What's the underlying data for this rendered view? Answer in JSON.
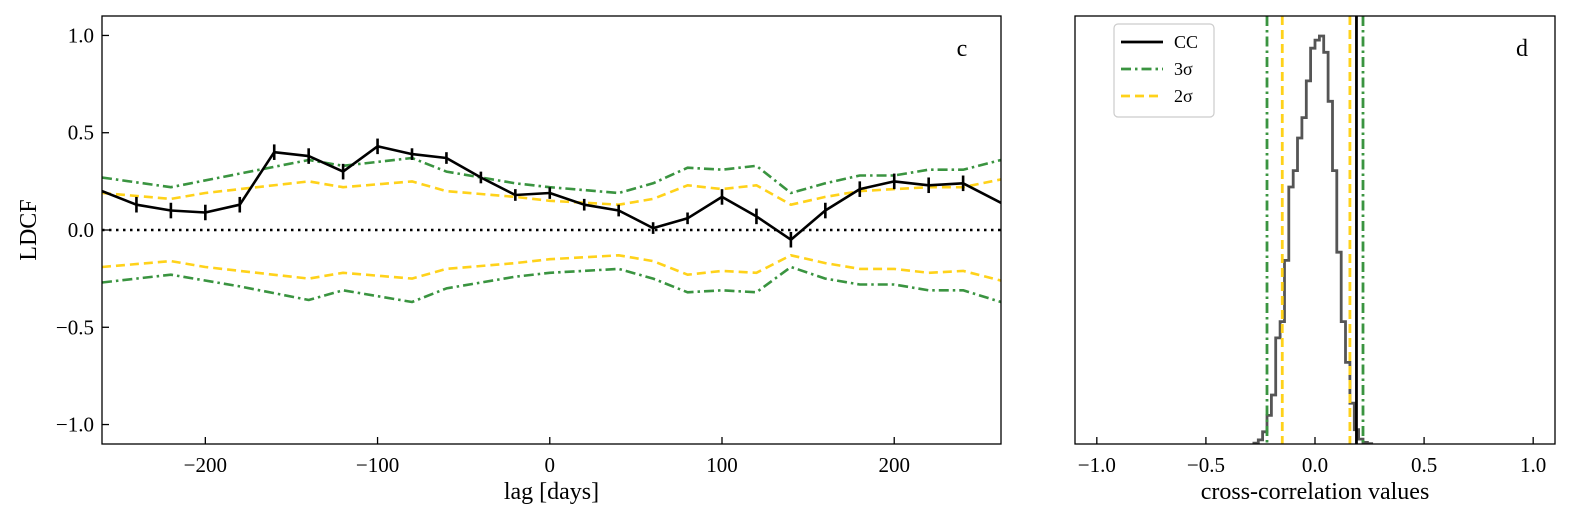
{
  "colors": {
    "cc": "#000000",
    "sigma3": "#3a9440",
    "sigma2": "#ffd21a",
    "zero_line": "#000000",
    "histogram": "#555555"
  },
  "chart_data": [
    {
      "type": "line",
      "panel_label": "c",
      "xlabel": "lag [days]",
      "ylabel": "LDCF",
      "xlim": [
        -260,
        262
      ],
      "ylim": [
        -1.1,
        1.1
      ],
      "xticks": [
        -200,
        -100,
        0,
        100,
        200
      ],
      "xtick_labels": [
        "−200",
        "−100",
        "0",
        "100",
        "200"
      ],
      "yticks": [
        -1.0,
        -0.5,
        0.0,
        0.5,
        1.0
      ],
      "ytick_labels": [
        "−1.0",
        "−0.5",
        "0.0",
        "0.5",
        "1.0"
      ],
      "series": [
        {
          "name": "LDCF",
          "style": "solid-errorbars",
          "color": "#000000",
          "x": [
            -260,
            -240,
            -220,
            -200,
            -180,
            -160,
            -140,
            -120,
            -100,
            -80,
            -60,
            -40,
            -20,
            0,
            20,
            40,
            60,
            80,
            100,
            120,
            140,
            160,
            180,
            200,
            220,
            240,
            262
          ],
          "y": [
            0.2,
            0.13,
            0.1,
            0.09,
            0.13,
            0.4,
            0.38,
            0.3,
            0.43,
            0.39,
            0.37,
            0.27,
            0.18,
            0.19,
            0.13,
            0.1,
            0.01,
            0.06,
            0.17,
            0.07,
            -0.05,
            0.1,
            0.21,
            0.25,
            0.23,
            0.24,
            0.14
          ],
          "err": [
            0,
            0.04,
            0.04,
            0.04,
            0.04,
            0.04,
            0.04,
            0.04,
            0.04,
            0.03,
            0.03,
            0.03,
            0.03,
            0.03,
            0.03,
            0.03,
            0.03,
            0.03,
            0.04,
            0.04,
            0.04,
            0.04,
            0.04,
            0.04,
            0.04,
            0.04,
            0
          ]
        },
        {
          "name": "3σ upper",
          "style": "dashdot",
          "color": "#3a9440",
          "x": [
            -260,
            -220,
            -180,
            -140,
            -120,
            -80,
            -60,
            -20,
            0,
            40,
            60,
            80,
            100,
            120,
            140,
            160,
            180,
            200,
            220,
            240,
            262
          ],
          "y": [
            0.27,
            0.22,
            0.29,
            0.36,
            0.33,
            0.37,
            0.3,
            0.24,
            0.22,
            0.19,
            0.24,
            0.32,
            0.31,
            0.33,
            0.19,
            0.24,
            0.28,
            0.28,
            0.31,
            0.31,
            0.36
          ]
        },
        {
          "name": "3σ lower",
          "style": "dashdot",
          "color": "#3a9440",
          "x": [
            -260,
            -220,
            -180,
            -140,
            -120,
            -80,
            -60,
            -20,
            0,
            40,
            60,
            80,
            100,
            120,
            140,
            160,
            180,
            200,
            220,
            240,
            262
          ],
          "y": [
            -0.27,
            -0.23,
            -0.29,
            -0.36,
            -0.31,
            -0.37,
            -0.3,
            -0.24,
            -0.22,
            -0.2,
            -0.25,
            -0.32,
            -0.31,
            -0.32,
            -0.19,
            -0.25,
            -0.28,
            -0.28,
            -0.31,
            -0.31,
            -0.37
          ]
        },
        {
          "name": "2σ upper",
          "style": "dashed",
          "color": "#ffd21a",
          "x": [
            -260,
            -220,
            -200,
            -180,
            -140,
            -120,
            -80,
            -60,
            -20,
            0,
            40,
            60,
            80,
            100,
            120,
            140,
            160,
            180,
            200,
            220,
            240,
            262
          ],
          "y": [
            0.19,
            0.16,
            0.19,
            0.21,
            0.25,
            0.22,
            0.25,
            0.2,
            0.17,
            0.15,
            0.13,
            0.16,
            0.23,
            0.21,
            0.23,
            0.13,
            0.17,
            0.2,
            0.21,
            0.22,
            0.22,
            0.26
          ]
        },
        {
          "name": "2σ lower",
          "style": "dashed",
          "color": "#ffd21a",
          "x": [
            -260,
            -220,
            -200,
            -180,
            -140,
            -120,
            -80,
            -60,
            -20,
            0,
            40,
            60,
            80,
            100,
            120,
            140,
            160,
            180,
            200,
            220,
            240,
            262
          ],
          "y": [
            -0.19,
            -0.16,
            -0.19,
            -0.21,
            -0.25,
            -0.22,
            -0.25,
            -0.2,
            -0.17,
            -0.15,
            -0.13,
            -0.16,
            -0.23,
            -0.21,
            -0.22,
            -0.13,
            -0.17,
            -0.2,
            -0.2,
            -0.22,
            -0.21,
            -0.26
          ]
        }
      ],
      "zero_line": {
        "y": 0,
        "style": "dotted"
      }
    },
    {
      "type": "histogram",
      "panel_label": "d",
      "xlabel": "cross-correlation values",
      "ylabel": "",
      "xlim": [
        -1.1,
        1.1
      ],
      "xticks": [
        -1.0,
        -0.5,
        0.0,
        0.5,
        1.0
      ],
      "xtick_labels": [
        "−1.0",
        "−0.5",
        "0.0",
        "0.5",
        "1.0"
      ],
      "yticks_visible": false,
      "histogram": {
        "bin_edges": [
          -0.28,
          -0.26,
          -0.24,
          -0.22,
          -0.2,
          -0.18,
          -0.16,
          -0.14,
          -0.12,
          -0.1,
          -0.08,
          -0.06,
          -0.04,
          -0.02,
          0.0,
          0.02,
          0.04,
          0.06,
          0.08,
          0.1,
          0.12,
          0.14,
          0.16,
          0.18,
          0.2,
          0.22,
          0.24,
          0.26
        ],
        "normalized_counts": [
          0.002,
          0.01,
          0.03,
          0.07,
          0.12,
          0.26,
          0.3,
          0.45,
          0.63,
          0.67,
          0.75,
          0.8,
          0.89,
          0.97,
          0.99,
          1.0,
          0.96,
          0.84,
          0.67,
          0.47,
          0.3,
          0.2,
          0.1,
          0.035,
          0.012,
          0.004,
          0.001
        ]
      },
      "vlines": [
        {
          "name": "CC",
          "x": 0.19,
          "color": "#000000",
          "style": "solid"
        },
        {
          "name": "3σ",
          "x": -0.22,
          "color": "#3a9440",
          "style": "dashdot"
        },
        {
          "name": "3σ",
          "x": 0.22,
          "color": "#3a9440",
          "style": "dashdot"
        },
        {
          "name": "2σ",
          "x": -0.15,
          "color": "#ffd21a",
          "style": "dashed"
        },
        {
          "name": "2σ",
          "x": 0.16,
          "color": "#ffd21a",
          "style": "dashed"
        }
      ],
      "legend": {
        "position": "top-left",
        "entries": [
          {
            "label": "CC",
            "color": "#000000",
            "style": "solid"
          },
          {
            "label": "3σ",
            "color": "#3a9440",
            "style": "dashdot"
          },
          {
            "label": "2σ",
            "color": "#ffd21a",
            "style": "dashed"
          }
        ]
      }
    }
  ]
}
